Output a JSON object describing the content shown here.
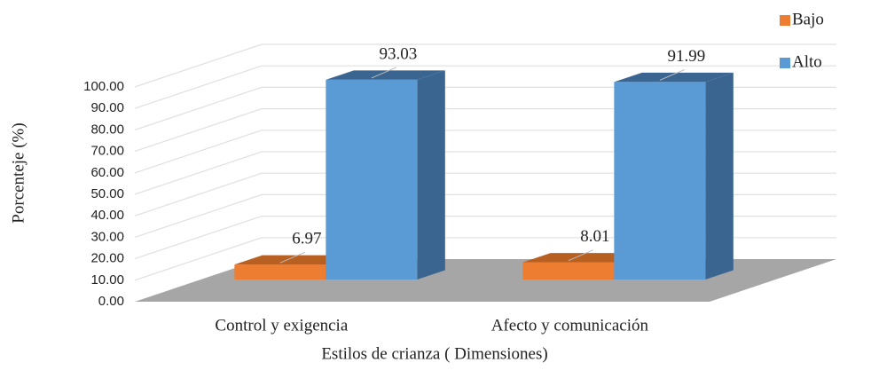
{
  "chart_data": {
    "type": "bar3d",
    "x_label": "Estilos de crianza ( Dimensiones)",
    "y_label": "Porcenteje (%)",
    "categories": [
      "Control y exigencia",
      "Afecto y comunicación"
    ],
    "series": [
      {
        "name": "Bajo",
        "color": "#ed7d31",
        "side": "#b85f22",
        "values": [
          6.97,
          8.01
        ]
      },
      {
        "name": "Alto",
        "color": "#5b9bd5",
        "side": "#3a6590",
        "values": [
          93.03,
          91.99
        ]
      }
    ],
    "ylim": [
      0,
      100
    ],
    "yticks": [
      {
        "value": 0,
        "label": "0.00"
      },
      {
        "value": 10,
        "label": "10.00"
      },
      {
        "value": 20,
        "label": "20.00"
      },
      {
        "value": 30,
        "label": "30.00"
      },
      {
        "value": 40,
        "label": "40.00"
      },
      {
        "value": 50,
        "label": "50.00"
      },
      {
        "value": 60,
        "label": "60.00"
      },
      {
        "value": 70,
        "label": "70.00"
      },
      {
        "value": 80,
        "label": "80.00"
      },
      {
        "value": 90,
        "label": "90.00"
      },
      {
        "value": 100,
        "label": "100.00"
      }
    ],
    "grid": true,
    "legend": "top-right"
  }
}
